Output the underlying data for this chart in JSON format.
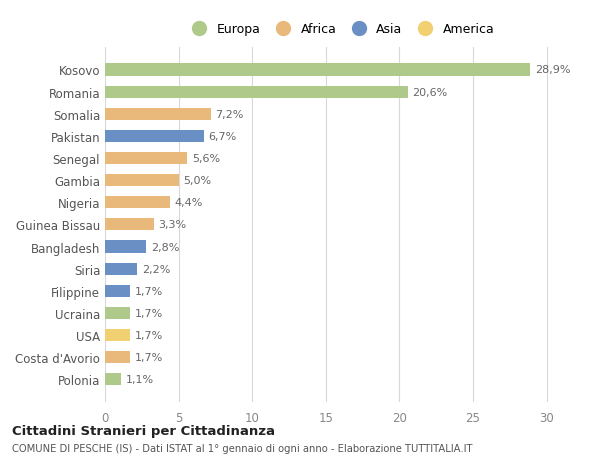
{
  "countries": [
    "Kosovo",
    "Romania",
    "Somalia",
    "Pakistan",
    "Senegal",
    "Gambia",
    "Nigeria",
    "Guinea Bissau",
    "Bangladesh",
    "Siria",
    "Filippine",
    "Ucraina",
    "USA",
    "Costa d'Avorio",
    "Polonia"
  ],
  "values": [
    28.9,
    20.6,
    7.2,
    6.7,
    5.6,
    5.0,
    4.4,
    3.3,
    2.8,
    2.2,
    1.7,
    1.7,
    1.7,
    1.7,
    1.1
  ],
  "labels": [
    "28,9%",
    "20,6%",
    "7,2%",
    "6,7%",
    "5,6%",
    "5,0%",
    "4,4%",
    "3,3%",
    "2,8%",
    "2,2%",
    "1,7%",
    "1,7%",
    "1,7%",
    "1,7%",
    "1,1%"
  ],
  "continents": [
    "Europa",
    "Europa",
    "Africa",
    "Asia",
    "Africa",
    "Africa",
    "Africa",
    "Africa",
    "Asia",
    "Asia",
    "Asia",
    "Europa",
    "America",
    "Africa",
    "Europa"
  ],
  "continent_colors": {
    "Europa": "#aec98a",
    "Africa": "#e8b97a",
    "Asia": "#6a8fc4",
    "America": "#f0d070"
  },
  "legend_order": [
    "Europa",
    "Africa",
    "Asia",
    "America"
  ],
  "background_color": "#ffffff",
  "grid_color": "#d8d8d8",
  "title_main": "Cittadini Stranieri per Cittadinanza",
  "title_sub": "COMUNE DI PESCHE (IS) - Dati ISTAT al 1° gennaio di ogni anno - Elaborazione TUTTITALIA.IT",
  "xlim": [
    0,
    32
  ],
  "xticks": [
    0,
    5,
    10,
    15,
    20,
    25,
    30
  ]
}
